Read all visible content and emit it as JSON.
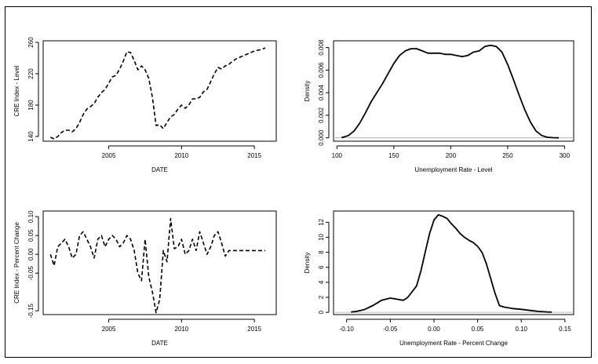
{
  "chart_data": [
    {
      "panel": "top-left",
      "type": "line",
      "line_style": "dashed",
      "title": "",
      "xlabel": "DATE",
      "ylabel": "CRE Index - Level",
      "xlim": [
        2000.5,
        2016.5
      ],
      "ylim": [
        134,
        262
      ],
      "xticks": [
        2005,
        2010,
        2015
      ],
      "yticks": [
        140,
        180,
        220,
        260
      ],
      "x": [
        2001.0,
        2001.25,
        2001.5,
        2001.75,
        2002.0,
        2002.25,
        2002.5,
        2002.75,
        2003.0,
        2003.25,
        2003.5,
        2003.75,
        2004.0,
        2004.25,
        2004.5,
        2004.75,
        2005.0,
        2005.25,
        2005.5,
        2005.75,
        2006.0,
        2006.25,
        2006.5,
        2006.75,
        2007.0,
        2007.25,
        2007.5,
        2007.75,
        2008.0,
        2008.25,
        2008.5,
        2008.75,
        2009.0,
        2009.25,
        2009.5,
        2009.75,
        2010.0,
        2010.25,
        2010.5,
        2010.75,
        2011.0,
        2011.25,
        2011.5,
        2011.75,
        2012.0,
        2012.25,
        2012.5,
        2012.75,
        2013.0,
        2013.25,
        2013.5,
        2013.75,
        2014.0,
        2014.25,
        2014.5,
        2014.75,
        2015.0,
        2015.25,
        2015.5,
        2015.75
      ],
      "values": [
        139,
        137,
        140,
        145,
        148,
        148,
        146,
        150,
        158,
        168,
        175,
        178,
        182,
        190,
        196,
        200,
        208,
        216,
        218,
        226,
        236,
        248,
        247,
        237,
        225,
        230,
        225,
        214,
        190,
        154,
        155,
        150,
        158,
        165,
        168,
        175,
        180,
        176,
        180,
        188,
        188,
        190,
        197,
        200,
        210,
        220,
        228,
        226,
        230,
        232,
        236,
        239,
        241,
        243,
        245,
        247,
        249,
        250,
        251,
        253
      ]
    },
    {
      "panel": "top-right",
      "type": "line",
      "line_style": "solid",
      "title": "",
      "xlabel": "Unemployment Rate - Level",
      "ylabel": "Density",
      "xlim": [
        97,
        308
      ],
      "ylim": [
        -0.0003,
        0.0086
      ],
      "xticks": [
        100,
        150,
        200,
        250,
        300
      ],
      "yticks": [
        0.0,
        0.002,
        0.004,
        0.006,
        0.008
      ],
      "baseline": 0,
      "x": [
        104,
        110,
        115,
        120,
        125,
        130,
        135,
        140,
        145,
        150,
        155,
        160,
        165,
        170,
        175,
        180,
        185,
        190,
        195,
        200,
        205,
        210,
        215,
        220,
        225,
        230,
        235,
        240,
        245,
        250,
        255,
        260,
        265,
        270,
        275,
        280,
        285,
        290,
        295
      ],
      "values": [
        1e-05,
        0.0002,
        0.0006,
        0.0013,
        0.0022,
        0.0032,
        0.004,
        0.0048,
        0.0057,
        0.0066,
        0.0073,
        0.0077,
        0.0079,
        0.0079,
        0.0077,
        0.0075,
        0.0075,
        0.0075,
        0.0074,
        0.0074,
        0.0073,
        0.0072,
        0.0073,
        0.0076,
        0.0077,
        0.0081,
        0.0082,
        0.0081,
        0.0076,
        0.0065,
        0.0052,
        0.0038,
        0.0025,
        0.0014,
        0.0006,
        0.0002,
        5e-05,
        1e-05,
        0.0
      ]
    },
    {
      "panel": "bottom-left",
      "type": "line",
      "line_style": "dashed",
      "title": "",
      "xlabel": "DATE",
      "ylabel": "CRE Index - Percent Change",
      "xlim": [
        2000.5,
        2016.5
      ],
      "ylim": [
        -0.16,
        0.115
      ],
      "xticks": [
        2005,
        2010,
        2015
      ],
      "yticks": [
        -0.15,
        -0.05,
        0.0,
        0.05,
        0.1
      ],
      "x": [
        2001.0,
        2001.25,
        2001.5,
        2001.75,
        2002.0,
        2002.25,
        2002.5,
        2002.75,
        2003.0,
        2003.25,
        2003.5,
        2003.75,
        2004.0,
        2004.25,
        2004.5,
        2004.75,
        2005.0,
        2005.25,
        2005.5,
        2005.75,
        2006.0,
        2006.25,
        2006.5,
        2006.75,
        2007.0,
        2007.25,
        2007.5,
        2007.75,
        2008.0,
        2008.25,
        2008.5,
        2008.75,
        2009.0,
        2009.25,
        2009.5,
        2009.75,
        2010.0,
        2010.25,
        2010.5,
        2010.75,
        2011.0,
        2011.25,
        2011.5,
        2011.75,
        2012.0,
        2012.25,
        2012.5,
        2012.75,
        2013.0,
        2013.25,
        2013.5,
        2013.75,
        2014.0,
        2014.25,
        2014.5,
        2014.75,
        2015.0,
        2015.25,
        2015.5,
        2015.75
      ],
      "values": [
        0.0,
        -0.03,
        0.02,
        0.03,
        0.04,
        0.02,
        -0.01,
        0.0,
        0.05,
        0.06,
        0.04,
        0.02,
        -0.01,
        0.04,
        0.05,
        0.02,
        0.04,
        0.05,
        0.04,
        0.02,
        0.03,
        0.05,
        0.04,
        0.01,
        -0.05,
        -0.07,
        0.04,
        -0.06,
        -0.1,
        -0.155,
        -0.12,
        0.01,
        -0.02,
        0.095,
        0.015,
        0.02,
        0.04,
        0.0,
        0.01,
        0.04,
        0.01,
        0.06,
        0.03,
        0.0,
        0.02,
        0.05,
        0.06,
        0.03,
        -0.005,
        0.01,
        0.01,
        0.01,
        0.01,
        0.01,
        0.01,
        0.01,
        0.01,
        0.01,
        0.01,
        0.01
      ]
    },
    {
      "panel": "bottom-right",
      "type": "line",
      "line_style": "solid",
      "title": "",
      "xlabel": "Unemployment Rate - Percent Change",
      "ylabel": "Density",
      "xlim": [
        -0.115,
        0.16
      ],
      "ylim": [
        -0.3,
        13.5
      ],
      "xticks": [
        -0.1,
        -0.05,
        0.0,
        0.05,
        0.1,
        0.15
      ],
      "yticks": [
        0,
        2,
        4,
        6,
        8,
        10,
        12
      ],
      "baseline": 0,
      "x": [
        -0.095,
        -0.09,
        -0.08,
        -0.07,
        -0.06,
        -0.05,
        -0.045,
        -0.04,
        -0.035,
        -0.03,
        -0.02,
        -0.015,
        -0.01,
        -0.005,
        0.0,
        0.005,
        0.01,
        0.015,
        0.02,
        0.025,
        0.03,
        0.035,
        0.04,
        0.045,
        0.05,
        0.055,
        0.06,
        0.065,
        0.07,
        0.075,
        0.08,
        0.09,
        0.1,
        0.11,
        0.12,
        0.13,
        0.135
      ],
      "values": [
        0.05,
        0.1,
        0.35,
        0.9,
        1.6,
        1.9,
        1.8,
        1.7,
        1.6,
        2.0,
        3.5,
        5.5,
        8.0,
        10.5,
        12.3,
        13.0,
        12.8,
        12.5,
        11.8,
        11.2,
        10.5,
        10.0,
        9.6,
        9.3,
        8.8,
        8.0,
        6.5,
        4.5,
        2.5,
        0.9,
        0.7,
        0.5,
        0.4,
        0.25,
        0.12,
        0.05,
        0.02
      ]
    }
  ]
}
